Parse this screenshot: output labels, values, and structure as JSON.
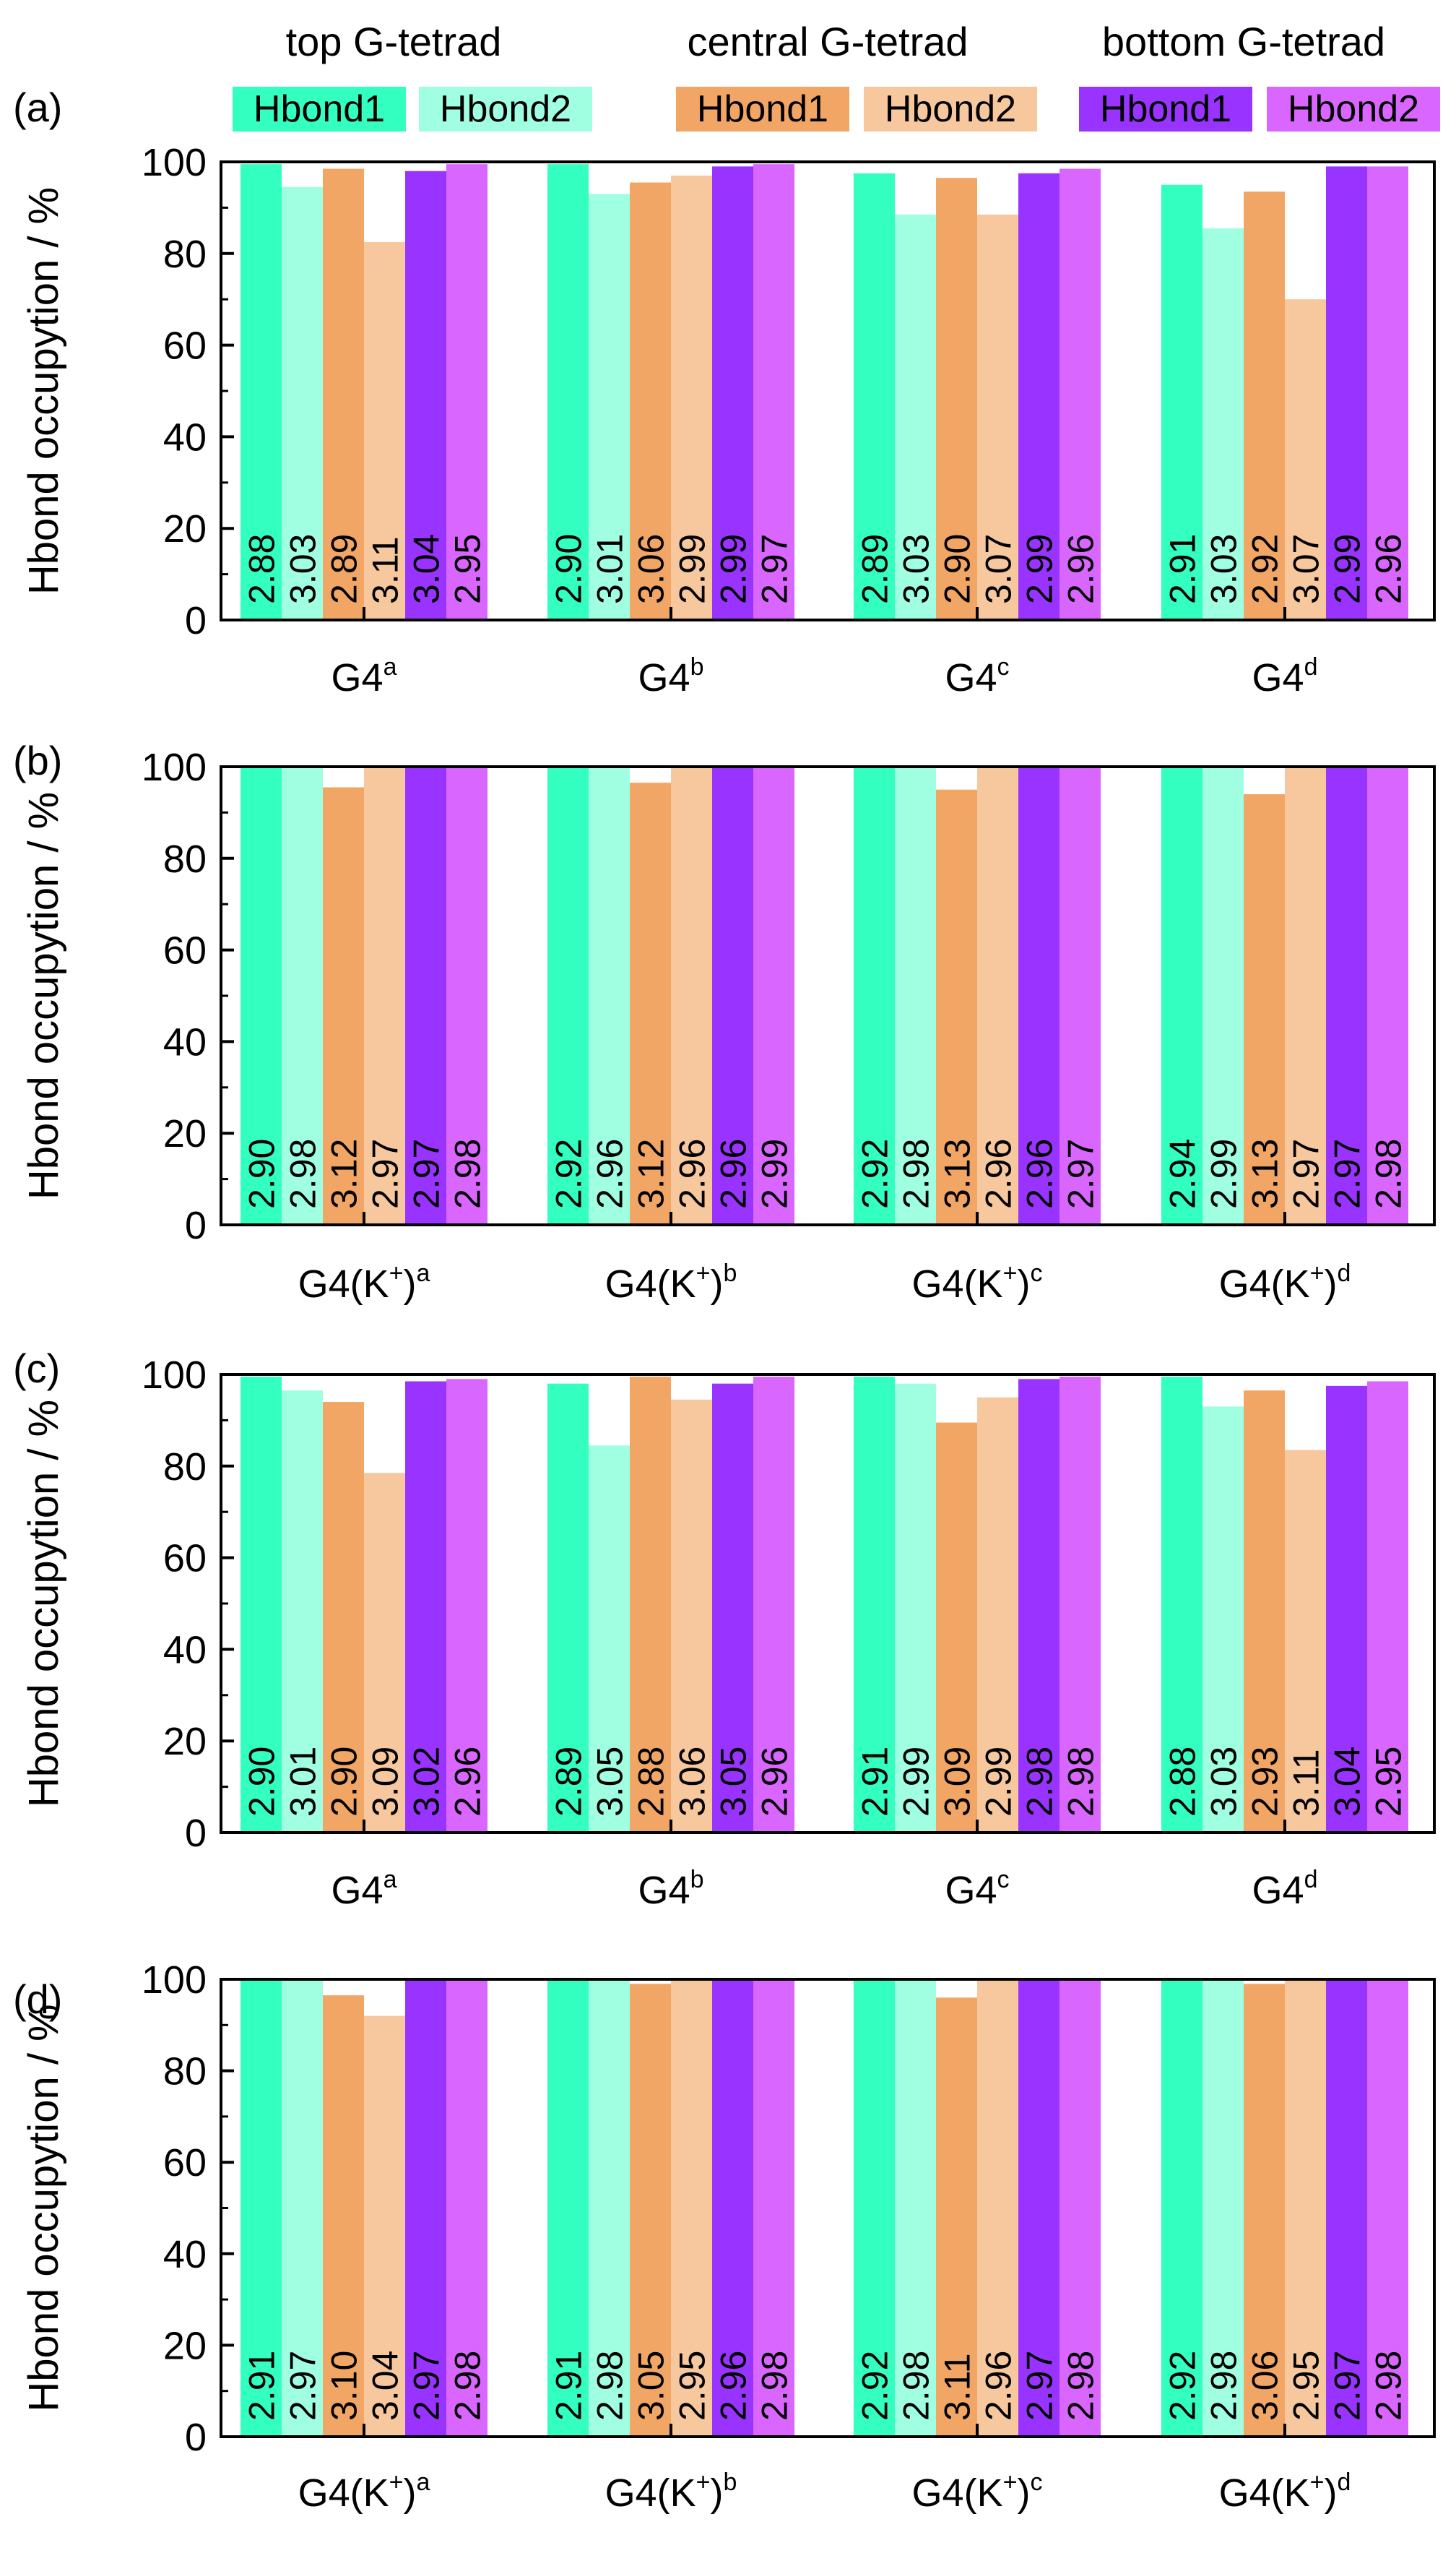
{
  "legend": {
    "groups": [
      {
        "title": "top G-tetrad",
        "items": [
          {
            "label": "Hbond1",
            "color": "#33ffc0"
          },
          {
            "label": "Hbond2",
            "color": "#a0ffe0"
          }
        ]
      },
      {
        "title": "central G-tetrad",
        "items": [
          {
            "label": "Hbond1",
            "color": "#f2a665"
          },
          {
            "label": "Hbond2",
            "color": "#f7c79d"
          }
        ]
      },
      {
        "title": "bottom G-tetrad",
        "items": [
          {
            "label": "Hbond1",
            "color": "#9933ff"
          },
          {
            "label": "Hbond2",
            "color": "#d966ff"
          }
        ]
      }
    ]
  },
  "chart_data": [
    {
      "type": "bar",
      "panel": "(a)",
      "ylabel": "Hbond occupytion / %",
      "ylim": [
        0,
        100
      ],
      "yticks": [
        "0",
        "20",
        "40",
        "60",
        "80",
        "100"
      ],
      "categories": [
        {
          "base": "G4",
          "sup": "a"
        },
        {
          "base": "G4",
          "sup": "b"
        },
        {
          "base": "G4",
          "sup": "c"
        },
        {
          "base": "G4",
          "sup": "d"
        }
      ],
      "values": [
        [
          99.5,
          94.5,
          98.5,
          82.5,
          98,
          99.5
        ],
        [
          99.5,
          93,
          95.5,
          97,
          99,
          99.5
        ],
        [
          97.5,
          88.5,
          96.5,
          88.5,
          97.5,
          98.5
        ],
        [
          95,
          85.5,
          93.5,
          70,
          99,
          99
        ]
      ],
      "labels": [
        [
          "2.88",
          "3.03",
          "2.89",
          "3.11",
          "3.04",
          "2.95"
        ],
        [
          "2.90",
          "3.01",
          "3.06",
          "2.99",
          "2.99",
          "2.97"
        ],
        [
          "2.89",
          "3.03",
          "2.90",
          "3.07",
          "2.99",
          "2.96"
        ],
        [
          "2.91",
          "3.03",
          "2.92",
          "3.07",
          "2.99",
          "2.96"
        ]
      ]
    },
    {
      "type": "bar",
      "panel": "(b)",
      "ylabel": "Hbond occupytion / %",
      "ylim": [
        0,
        100
      ],
      "yticks": [
        "0",
        "20",
        "40",
        "60",
        "80",
        "100"
      ],
      "categories": [
        {
          "base": "G4(K",
          "sup": "+",
          "end": ")",
          "sup2": "a"
        },
        {
          "base": "G4(K",
          "sup": "+",
          "end": ")",
          "sup2": "b"
        },
        {
          "base": "G4(K",
          "sup": "+",
          "end": ")",
          "sup2": "c"
        },
        {
          "base": "G4(K",
          "sup": "+",
          "end": ")",
          "sup2": "d"
        }
      ],
      "values": [
        [
          100,
          100,
          95.5,
          100,
          100,
          100
        ],
        [
          100,
          100,
          96.5,
          100,
          100,
          100
        ],
        [
          100,
          100,
          95,
          100,
          100,
          100
        ],
        [
          100,
          100,
          94,
          100,
          100,
          100
        ]
      ],
      "labels": [
        [
          "2.90",
          "2.98",
          "3.12",
          "2.97",
          "2.97",
          "2.98"
        ],
        [
          "2.92",
          "2.96",
          "3.12",
          "2.96",
          "2.96",
          "2.99"
        ],
        [
          "2.92",
          "2.98",
          "3.13",
          "2.96",
          "2.96",
          "2.97"
        ],
        [
          "2.94",
          "2.99",
          "3.13",
          "2.97",
          "2.97",
          "2.98"
        ]
      ]
    },
    {
      "type": "bar",
      "panel": "(c)",
      "ylabel": "Hbond occupytion / %",
      "ylim": [
        0,
        100
      ],
      "yticks": [
        "0",
        "20",
        "40",
        "60",
        "80",
        "100"
      ],
      "categories": [
        {
          "base": "G4",
          "sup": "a"
        },
        {
          "base": "G4",
          "sup": "b"
        },
        {
          "base": "G4",
          "sup": "c"
        },
        {
          "base": "G4",
          "sup": "d"
        }
      ],
      "values": [
        [
          99.5,
          96.5,
          94,
          78.5,
          98.5,
          99
        ],
        [
          98,
          84.5,
          99.5,
          94.5,
          98,
          99.5
        ],
        [
          99.5,
          98,
          89.5,
          95,
          99,
          99.5
        ],
        [
          99.5,
          93,
          96.5,
          83.5,
          97.5,
          98.5
        ]
      ],
      "labels": [
        [
          "2.90",
          "3.01",
          "2.90",
          "3.09",
          "3.02",
          "2.96"
        ],
        [
          "2.89",
          "3.05",
          "2.88",
          "3.06",
          "3.05",
          "2.96"
        ],
        [
          "2.91",
          "2.99",
          "3.09",
          "2.99",
          "2.98",
          "2.98"
        ],
        [
          "2.88",
          "3.03",
          "2.93",
          "3.11",
          "3.04",
          "2.95"
        ]
      ]
    },
    {
      "type": "bar",
      "panel": "(d)",
      "ylabel": "Hbond occupytion / %",
      "ylim": [
        0,
        100
      ],
      "yticks": [
        "0",
        "20",
        "40",
        "60",
        "80",
        "100"
      ],
      "categories": [
        {
          "base": "G4(K",
          "sup": "+",
          "end": ")",
          "sup2": "a"
        },
        {
          "base": "G4(K",
          "sup": "+",
          "end": ")",
          "sup2": "b"
        },
        {
          "base": "G4(K",
          "sup": "+",
          "end": ")",
          "sup2": "c"
        },
        {
          "base": "G4(K",
          "sup": "+",
          "end": ")",
          "sup2": "d"
        }
      ],
      "values": [
        [
          100,
          100,
          96.5,
          92,
          100,
          100
        ],
        [
          100,
          100,
          99,
          100,
          100,
          100
        ],
        [
          100,
          100,
          96,
          100,
          100,
          100
        ],
        [
          100,
          100,
          99,
          100,
          100,
          100
        ]
      ],
      "labels": [
        [
          "2.91",
          "2.97",
          "3.10",
          "3.04",
          "2.97",
          "2.98"
        ],
        [
          "2.91",
          "2.98",
          "3.05",
          "2.95",
          "2.96",
          "2.98"
        ],
        [
          "2.92",
          "2.98",
          "3.11",
          "2.96",
          "2.97",
          "2.98"
        ],
        [
          "2.92",
          "2.98",
          "3.06",
          "2.95",
          "2.97",
          "2.98"
        ]
      ]
    }
  ]
}
